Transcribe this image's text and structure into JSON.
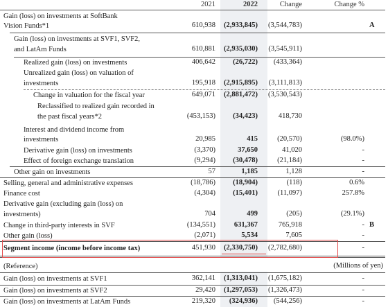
{
  "columns": {
    "y2021": "2021",
    "y2022": "2022",
    "change": "Change",
    "change_pct": "Change %"
  },
  "rows": [
    {
      "label": "Gain (loss) on investments at SoftBank",
      "label2": "Vision Funds*1",
      "v2021": "610,938",
      "v2022": "(2,933,845)",
      "change": "(3,544,783)",
      "pct": "",
      "mark": "A"
    },
    {
      "label": "Gain (loss) on investments at SVF1, SVF2,",
      "label2": "and LatAm Funds",
      "v2021": "610,881",
      "v2022": "(2,935,030)",
      "change": "(3,545,911)",
      "pct": "",
      "mark": ""
    },
    {
      "label": "Realized gain (loss) on investments",
      "v2021": "406,642",
      "v2022": "(26,722)",
      "change": "(433,364)",
      "pct": "",
      "mark": ""
    },
    {
      "label": "Unrealized gain (loss) on valuation of",
      "label2": "investments",
      "v2021": "195,918",
      "v2022": "(2,915,895)",
      "change": "(3,111,813)",
      "pct": "",
      "mark": ""
    },
    {
      "label": "Change in valuation for the fiscal year",
      "v2021": "649,071",
      "v2022": "(2,881,472)",
      "change": "(3,530,543)",
      "pct": "",
      "mark": ""
    },
    {
      "label": "Reclassified to realized gain recorded in",
      "label2": "the past fiscal years*2",
      "v2021": "(453,153)",
      "v2022": "(34,423)",
      "change": "418,730",
      "pct": "",
      "mark": ""
    },
    {
      "label": "Interest and dividend income from",
      "label2": "investments",
      "v2021": "20,985",
      "v2022": "415",
      "change": "(20,570)",
      "pct": "(98.0%)",
      "mark": ""
    },
    {
      "label": "Derivative gain (loss) on investments",
      "v2021": "(3,370)",
      "v2022": "37,650",
      "change": "41,020",
      "pct": "-",
      "mark": ""
    },
    {
      "label": "Effect of foreign exchange translation",
      "v2021": "(9,294)",
      "v2022": "(30,478)",
      "change": "(21,184)",
      "pct": "-",
      "mark": ""
    },
    {
      "label": "Other gain on investments",
      "v2021": "57",
      "v2022": "1,185",
      "change": "1,128",
      "pct": "-",
      "mark": ""
    },
    {
      "label": "Selling, general and administrative expenses",
      "v2021": "(18,786)",
      "v2022": "(18,904)",
      "change": "(118)",
      "pct": "0.6%",
      "mark": ""
    },
    {
      "label": "Finance cost",
      "v2021": "(4,304)",
      "v2022": "(15,401)",
      "change": "(11,097)",
      "pct": "257.8%",
      "mark": ""
    },
    {
      "label": "Derivative gain (excluding gain (loss) on",
      "label2": "investments)",
      "v2021": "704",
      "v2022": "499",
      "change": "(205)",
      "pct": "(29.1%)",
      "mark": ""
    },
    {
      "label": "Change in third-party interests in SVF",
      "v2021": "(134,551)",
      "v2022": "631,367",
      "change": "765,918",
      "pct": "-",
      "mark": "B"
    },
    {
      "label": "Other gain (loss)",
      "v2021": "(2,071)",
      "v2022": "5,534",
      "change": "7,605",
      "pct": "-",
      "mark": ""
    },
    {
      "label": "Segment income (income before income tax)",
      "v2021": "451,930",
      "v2022": "(2,330,750)",
      "change": "(2,782,680)",
      "pct": "-",
      "mark": ""
    }
  ],
  "reference": {
    "label": "(Reference)",
    "unit": "(Millions of yen)",
    "rows": [
      {
        "label": "Gain (loss) on investments at SVF1",
        "v2021": "362,141",
        "v2022": "(1,313,041)",
        "change": "(1,675,182)",
        "pct": "-"
      },
      {
        "label": "Gain (loss) on investments at SVF2",
        "v2021": "29,420",
        "v2022": "(1,297,053)",
        "change": "(1,326,473)",
        "pct": "-"
      },
      {
        "label": "Gain (loss) on investments at LatAm Funds",
        "v2021": "219,320",
        "v2022": "(324,936)",
        "change": "(544,256)",
        "pct": "-"
      }
    ]
  }
}
